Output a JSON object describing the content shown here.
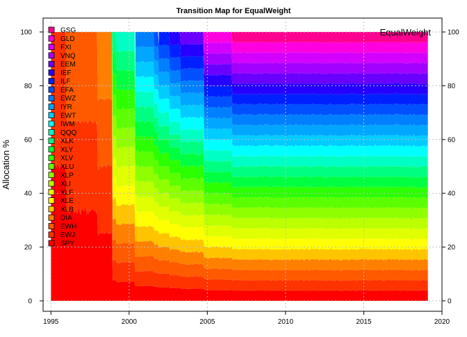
{
  "chart_data": {
    "type": "area",
    "title": "Transition Map for EqualWeight",
    "ylabel": "Allocation %",
    "xlabel": "",
    "corner_label": "EqualWeight",
    "xlim": [
      1994.5,
      2020
    ],
    "ylim": [
      0,
      100
    ],
    "x_ticks": [
      1995,
      2000,
      2005,
      2010,
      2015,
      2020
    ],
    "y_ticks": [
      0,
      20,
      40,
      60,
      80,
      100
    ],
    "grid": true,
    "legend_position": "top-left",
    "legend_order_top_to_bottom": [
      "GSG",
      "GLD",
      "FXI",
      "VNQ",
      "EEM",
      "IEF",
      "ILF",
      "EFA",
      "EWZ",
      "IYR",
      "EWT",
      "IWM",
      "QQQ",
      "XLK",
      "XLY",
      "XLV",
      "XLU",
      "XLP",
      "XLI",
      "XLF",
      "XLE",
      "XLB",
      "DIA",
      "EWH",
      "EWJ",
      "SPY"
    ],
    "series_inception_year": {
      "SPY": 1995.0,
      "EWJ": 1995.0,
      "EWH": 1996.0,
      "DIA": 1998.0,
      "XLB": 1998.95,
      "XLE": 1998.95,
      "XLF": 1998.95,
      "XLI": 1998.95,
      "XLP": 1998.95,
      "XLU": 1998.95,
      "XLV": 1998.95,
      "XLY": 1998.95,
      "XLK": 1998.95,
      "QQQ": 1999.2,
      "IWM": 2000.4,
      "EWT": 2000.4,
      "IYR": 2000.4,
      "EWZ": 2000.4,
      "EFA": 2001.6,
      "ILF": 2001.9,
      "IEF": 2002.6,
      "EEM": 2003.3,
      "VNQ": 2004.8,
      "FXI": 2004.8,
      "GLD": 2004.8,
      "GSG": 2006.6
    },
    "x_end": 2019.1,
    "series_colors": {
      "SPY": "#FF0000",
      "EWJ": "#FF3300",
      "EWH": "#FF5A00",
      "DIA": "#FF8000",
      "XLB": "#FFC400",
      "XLE": "#FFFF00",
      "XLF": "#E0FF00",
      "XLI": "#BBFF00",
      "XLP": "#8FFF00",
      "XLU": "#5CFF00",
      "XLV": "#2BFF00",
      "XLY": "#00FF40",
      "XLK": "#00FF80",
      "QQQ": "#00FFC4",
      "IWM": "#00FFFF",
      "EWT": "#00CCFF",
      "IYR": "#00A6FF",
      "EWZ": "#0080FF",
      "EFA": "#0050FF",
      "ILF": "#0020FF",
      "IEF": "#2600FF",
      "EEM": "#6A00FF",
      "VNQ": "#A200FF",
      "FXI": "#D400FF",
      "GLD": "#FF00E0",
      "GSG": "#FF0090"
    }
  }
}
